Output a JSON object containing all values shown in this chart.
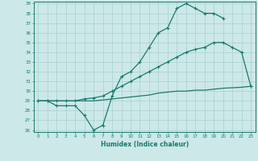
{
  "line1_x": [
    0,
    1,
    2,
    3,
    4,
    5,
    6,
    7,
    8,
    9,
    10,
    11,
    12,
    13,
    14,
    15,
    16,
    17,
    18,
    19,
    20,
    21,
    22,
    23
  ],
  "line1_y": [
    29.0,
    29.0,
    28.5,
    28.5,
    28.5,
    27.5,
    26.0,
    26.5,
    29.5,
    31.5,
    32.0,
    33.0,
    34.5,
    36.0,
    36.5,
    38.5,
    39.0,
    38.5,
    38.0,
    38.0,
    37.5,
    null,
    null,
    30.5
  ],
  "line2_x": [
    0,
    1,
    2,
    3,
    4,
    5,
    6,
    7,
    8,
    9,
    10,
    11,
    12,
    13,
    14,
    15,
    16,
    17,
    18,
    19,
    20,
    21,
    22,
    23
  ],
  "line2_y": [
    29.0,
    29.0,
    29.0,
    29.0,
    29.0,
    29.2,
    29.3,
    29.5,
    30.0,
    30.5,
    31.0,
    31.5,
    32.0,
    32.5,
    33.0,
    33.5,
    34.0,
    34.3,
    34.5,
    35.0,
    35.0,
    34.5,
    34.0,
    30.5
  ],
  "line3_x": [
    0,
    1,
    2,
    3,
    4,
    5,
    6,
    7,
    8,
    9,
    10,
    11,
    12,
    13,
    14,
    15,
    16,
    17,
    18,
    19,
    20,
    21,
    22,
    23
  ],
  "line3_y": [
    29.0,
    29.0,
    29.0,
    29.0,
    29.0,
    29.0,
    29.0,
    29.1,
    29.2,
    29.3,
    29.4,
    29.5,
    29.6,
    29.8,
    29.9,
    30.0,
    30.0,
    30.1,
    30.1,
    30.2,
    30.3,
    30.35,
    30.4,
    30.5
  ],
  "line_color": "#1a7a6e",
  "bg_color": "#cce8e8",
  "grid_color": "#aacfcf",
  "xlabel": "Humidex (Indice chaleur)",
  "ylim": [
    26,
    39
  ],
  "xlim": [
    -0.5,
    23.5
  ],
  "yticks": [
    26,
    27,
    28,
    29,
    30,
    31,
    32,
    33,
    34,
    35,
    36,
    37,
    38,
    39
  ],
  "xticks": [
    0,
    1,
    2,
    3,
    4,
    5,
    6,
    7,
    8,
    9,
    10,
    11,
    12,
    13,
    14,
    15,
    16,
    17,
    18,
    19,
    20,
    21,
    22,
    23
  ]
}
